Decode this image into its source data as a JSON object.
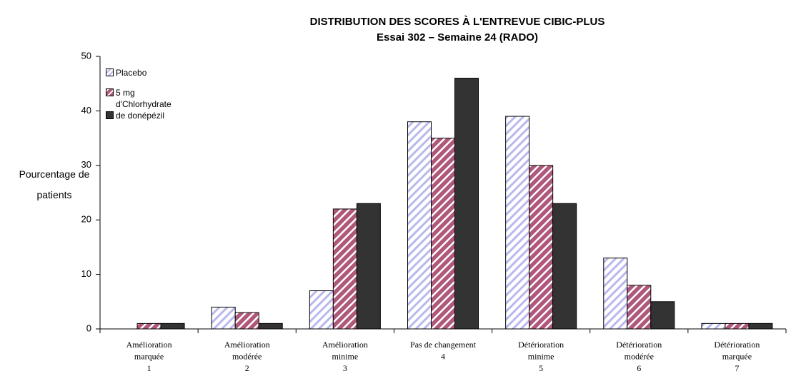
{
  "chart_data": {
    "type": "bar",
    "title": "DISTRIBUTION DES SCORES À L'ENTREVUE CIBIC-PLUS",
    "subtitle": "Essai 302 – Semaine 24 (RADO)",
    "y_label": "Pourcentage de patients",
    "categories": [
      [
        "Amélioration",
        "marquée",
        "1"
      ],
      [
        "Amélioration",
        "modérée",
        "2"
      ],
      [
        "Amélioration",
        "minime",
        "3"
      ],
      [
        "Pas de changement",
        "4"
      ],
      [
        "Détérioration",
        "minime",
        "5"
      ],
      [
        "Détérioration",
        "modérée",
        "6"
      ],
      [
        "Détérioration",
        "marquée",
        "7"
      ]
    ],
    "series": [
      {
        "name": "Placebo",
        "color": "#b8b8ee",
        "values": [
          0,
          4,
          7,
          38,
          39,
          13,
          1
        ]
      },
      {
        "name": "5 mg",
        "color": "#b0587a",
        "values": [
          1,
          3,
          22,
          35,
          30,
          8,
          1
        ]
      },
      {
        "name": "d'Chlorhydrate de donépézil",
        "color": "#333333",
        "values": [
          1,
          1,
          23,
          46,
          23,
          5,
          1
        ]
      }
    ],
    "ylim": [
      0,
      50
    ],
    "yticks": [
      0,
      10,
      20,
      30,
      40,
      50
    ],
    "grid": false
  }
}
